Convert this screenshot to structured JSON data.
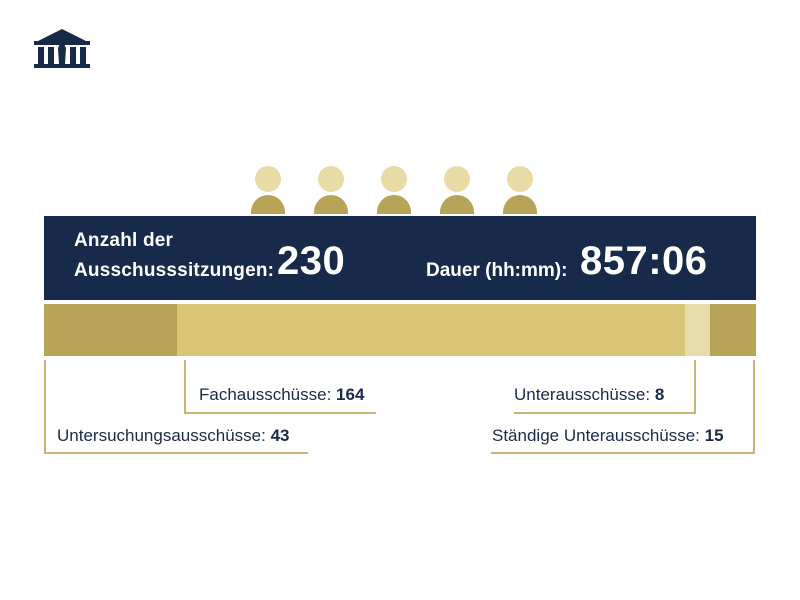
{
  "header": {
    "logo_icon": "parliament-building-icon"
  },
  "summary": {
    "sessions_label_line1": "Anzahl der",
    "sessions_label_line2": "Ausschusssitzungen:",
    "sessions_value": "230",
    "duration_label": "Dauer (hh:mm):",
    "duration_value": "857:06"
  },
  "decor": {
    "person_icon": "person-icon",
    "person_count": 5
  },
  "colors": {
    "navy": "#172a4a",
    "gold_dark": "#b7a457",
    "gold_mid": "#d8c576",
    "gold_light": "#e8dcaa",
    "leader": "#c9b571",
    "text": "#1b2a49"
  },
  "chart_data": {
    "type": "bar",
    "orientation": "horizontal-stacked",
    "total": 230,
    "series": [
      {
        "name": "Untersuchungsausschüsse",
        "value": 43,
        "label": "Untersuchungsausschüsse:",
        "value_text": "43",
        "color": "#b7a457"
      },
      {
        "name": "Fachausschüsse",
        "value": 164,
        "label": "Fachausschüsse:",
        "value_text": "164",
        "color": "#d8c576"
      },
      {
        "name": "Unterausschüsse",
        "value": 8,
        "label": "Unterausschüsse:",
        "value_text": "8",
        "color": "#e8dcaa"
      },
      {
        "name": "Ständige Unterausschüsse",
        "value": 15,
        "label": "Ständige Unterausschüsse:",
        "value_text": "15",
        "color": "#b7a457"
      }
    ]
  }
}
